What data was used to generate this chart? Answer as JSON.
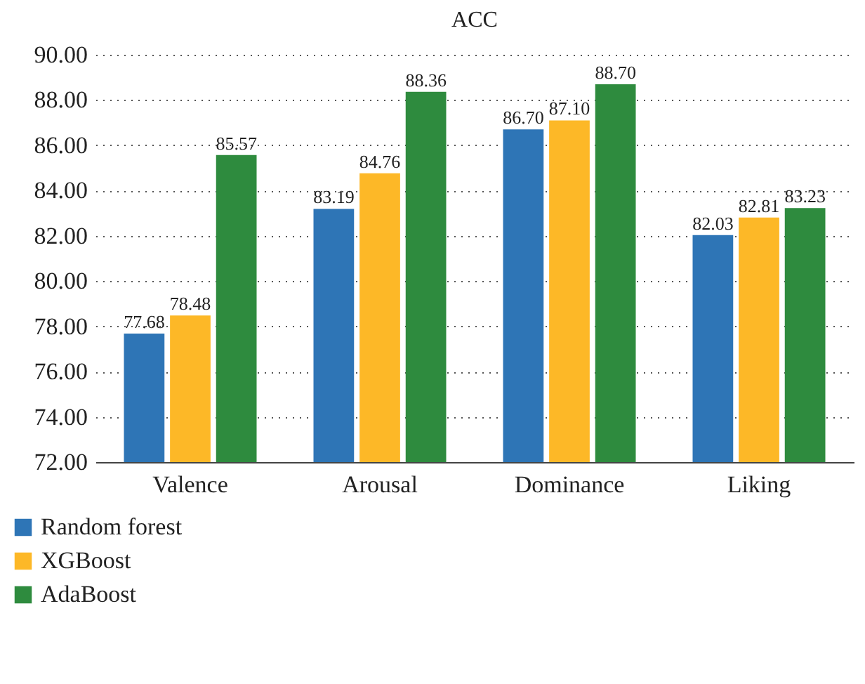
{
  "chart_data": {
    "type": "bar",
    "title": "ACC",
    "categories": [
      "Valence",
      "Arousal",
      "Dominance",
      "Liking"
    ],
    "series": [
      {
        "name": "Random forest",
        "color": "#2e75b6",
        "values": [
          77.68,
          83.19,
          86.7,
          82.03
        ],
        "value_labels": [
          "77.68",
          "83.19",
          "86.70",
          "82.03"
        ]
      },
      {
        "name": "XGBoost",
        "color": "#fdb827",
        "values": [
          78.48,
          84.76,
          87.1,
          82.81
        ],
        "value_labels": [
          "78.48",
          "84.76",
          "87.10",
          "82.81"
        ]
      },
      {
        "name": "AdaBoost",
        "color": "#2e8b3e",
        "values": [
          85.57,
          88.36,
          88.7,
          83.23
        ],
        "value_labels": [
          "85.57",
          "88.36",
          "88.70",
          "83.23"
        ]
      }
    ],
    "ylim": [
      72,
      90
    ],
    "yticks": [
      {
        "value": 72,
        "label": "72.00"
      },
      {
        "value": 74,
        "label": "74.00"
      },
      {
        "value": 76,
        "label": "76.00"
      },
      {
        "value": 78,
        "label": "78.00"
      },
      {
        "value": 80,
        "label": "80.00"
      },
      {
        "value": 82,
        "label": "82.00"
      },
      {
        "value": 84,
        "label": "84.00"
      },
      {
        "value": 86,
        "label": "86.00"
      },
      {
        "value": 88,
        "label": "88.00"
      },
      {
        "value": 90,
        "label": "90.00"
      }
    ],
    "grid": "y",
    "legend": "bottom left"
  }
}
